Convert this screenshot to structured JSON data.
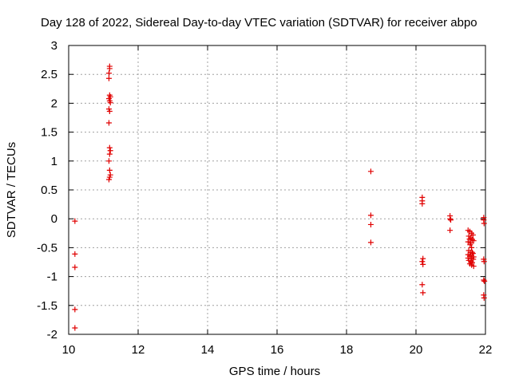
{
  "colors": {
    "points": "#e00000",
    "frame": "#000000",
    "grid": "#a0a0a0"
  },
  "chart_data": {
    "type": "scatter",
    "title": "Day 128 of 2022, Sidereal Day-to-day VTEC variation (SDTVAR) for receiver abpo",
    "xlabel": "GPS time / hours",
    "ylabel": "SDTVAR / TECUs",
    "xlim": [
      10,
      22
    ],
    "ylim": [
      -2,
      3
    ],
    "xticks": [
      10,
      12,
      14,
      16,
      18,
      20,
      22
    ],
    "yticks": [
      -2,
      -1.5,
      -1,
      -0.5,
      0,
      0.5,
      1,
      1.5,
      2,
      2.5,
      3
    ],
    "xtick_labels": [
      "10",
      "12",
      "14",
      "16",
      "18",
      "20",
      "22"
    ],
    "ytick_labels": [
      "-2",
      "-1.5",
      "-1",
      "-0.5",
      "0",
      "0.5",
      "1",
      "1.5",
      "2",
      "2.5",
      "3"
    ],
    "grid": true,
    "marker": "+",
    "series": [
      {
        "name": "SDTVAR",
        "points": [
          [
            10.18,
            -0.04
          ],
          [
            10.18,
            -0.61
          ],
          [
            10.18,
            -0.84
          ],
          [
            10.18,
            -1.57
          ],
          [
            10.18,
            -1.89
          ],
          [
            11.18,
            2.64
          ],
          [
            11.18,
            2.6
          ],
          [
            11.16,
            2.52
          ],
          [
            11.16,
            2.43
          ],
          [
            11.18,
            2.14
          ],
          [
            11.2,
            2.11
          ],
          [
            11.16,
            2.08
          ],
          [
            11.18,
            2.04
          ],
          [
            11.2,
            2.01
          ],
          [
            11.16,
            1.9
          ],
          [
            11.18,
            1.86
          ],
          [
            11.16,
            1.66
          ],
          [
            11.18,
            1.23
          ],
          [
            11.2,
            1.18
          ],
          [
            11.18,
            1.12
          ],
          [
            11.16,
            1.0
          ],
          [
            11.18,
            0.84
          ],
          [
            11.2,
            0.76
          ],
          [
            11.18,
            0.72
          ],
          [
            11.16,
            0.68
          ],
          [
            18.7,
            0.82
          ],
          [
            18.7,
            0.06
          ],
          [
            18.7,
            -0.1
          ],
          [
            18.7,
            -0.41
          ],
          [
            20.18,
            0.37
          ],
          [
            20.18,
            0.31
          ],
          [
            20.18,
            0.26
          ],
          [
            20.2,
            -0.69
          ],
          [
            20.18,
            -0.74
          ],
          [
            20.2,
            -0.79
          ],
          [
            20.18,
            -1.14
          ],
          [
            20.2,
            -1.28
          ],
          [
            20.98,
            0.05
          ],
          [
            20.98,
            0.0
          ],
          [
            21.0,
            -0.02
          ],
          [
            20.98,
            -0.2
          ],
          [
            21.5,
            -0.2
          ],
          [
            21.55,
            -0.22
          ],
          [
            21.6,
            -0.25
          ],
          [
            21.52,
            -0.3
          ],
          [
            21.58,
            -0.33
          ],
          [
            21.62,
            -0.36
          ],
          [
            21.66,
            -0.38
          ],
          [
            21.5,
            -0.4
          ],
          [
            21.56,
            -0.45
          ],
          [
            21.6,
            -0.5
          ],
          [
            21.52,
            -0.55
          ],
          [
            21.58,
            -0.58
          ],
          [
            21.64,
            -0.6
          ],
          [
            21.5,
            -0.62
          ],
          [
            21.55,
            -0.65
          ],
          [
            21.6,
            -0.68
          ],
          [
            21.65,
            -0.7
          ],
          [
            21.52,
            -0.72
          ],
          [
            21.58,
            -0.74
          ],
          [
            21.62,
            -0.76
          ],
          [
            21.55,
            -0.78
          ],
          [
            21.6,
            -0.8
          ],
          [
            21.66,
            -0.82
          ],
          [
            21.5,
            -0.68
          ],
          [
            21.56,
            -0.63
          ],
          [
            21.62,
            -0.58
          ],
          [
            21.54,
            -0.35
          ],
          [
            21.64,
            -0.28
          ],
          [
            21.58,
            -0.42
          ],
          [
            21.66,
            -0.66
          ],
          [
            21.95,
            0.02
          ],
          [
            21.95,
            -0.02
          ],
          [
            21.96,
            -0.08
          ],
          [
            21.95,
            -0.7
          ],
          [
            21.96,
            -0.74
          ],
          [
            21.95,
            -1.06
          ],
          [
            21.97,
            -1.08
          ],
          [
            21.95,
            -1.32
          ],
          [
            21.96,
            -1.37
          ]
        ]
      }
    ]
  }
}
